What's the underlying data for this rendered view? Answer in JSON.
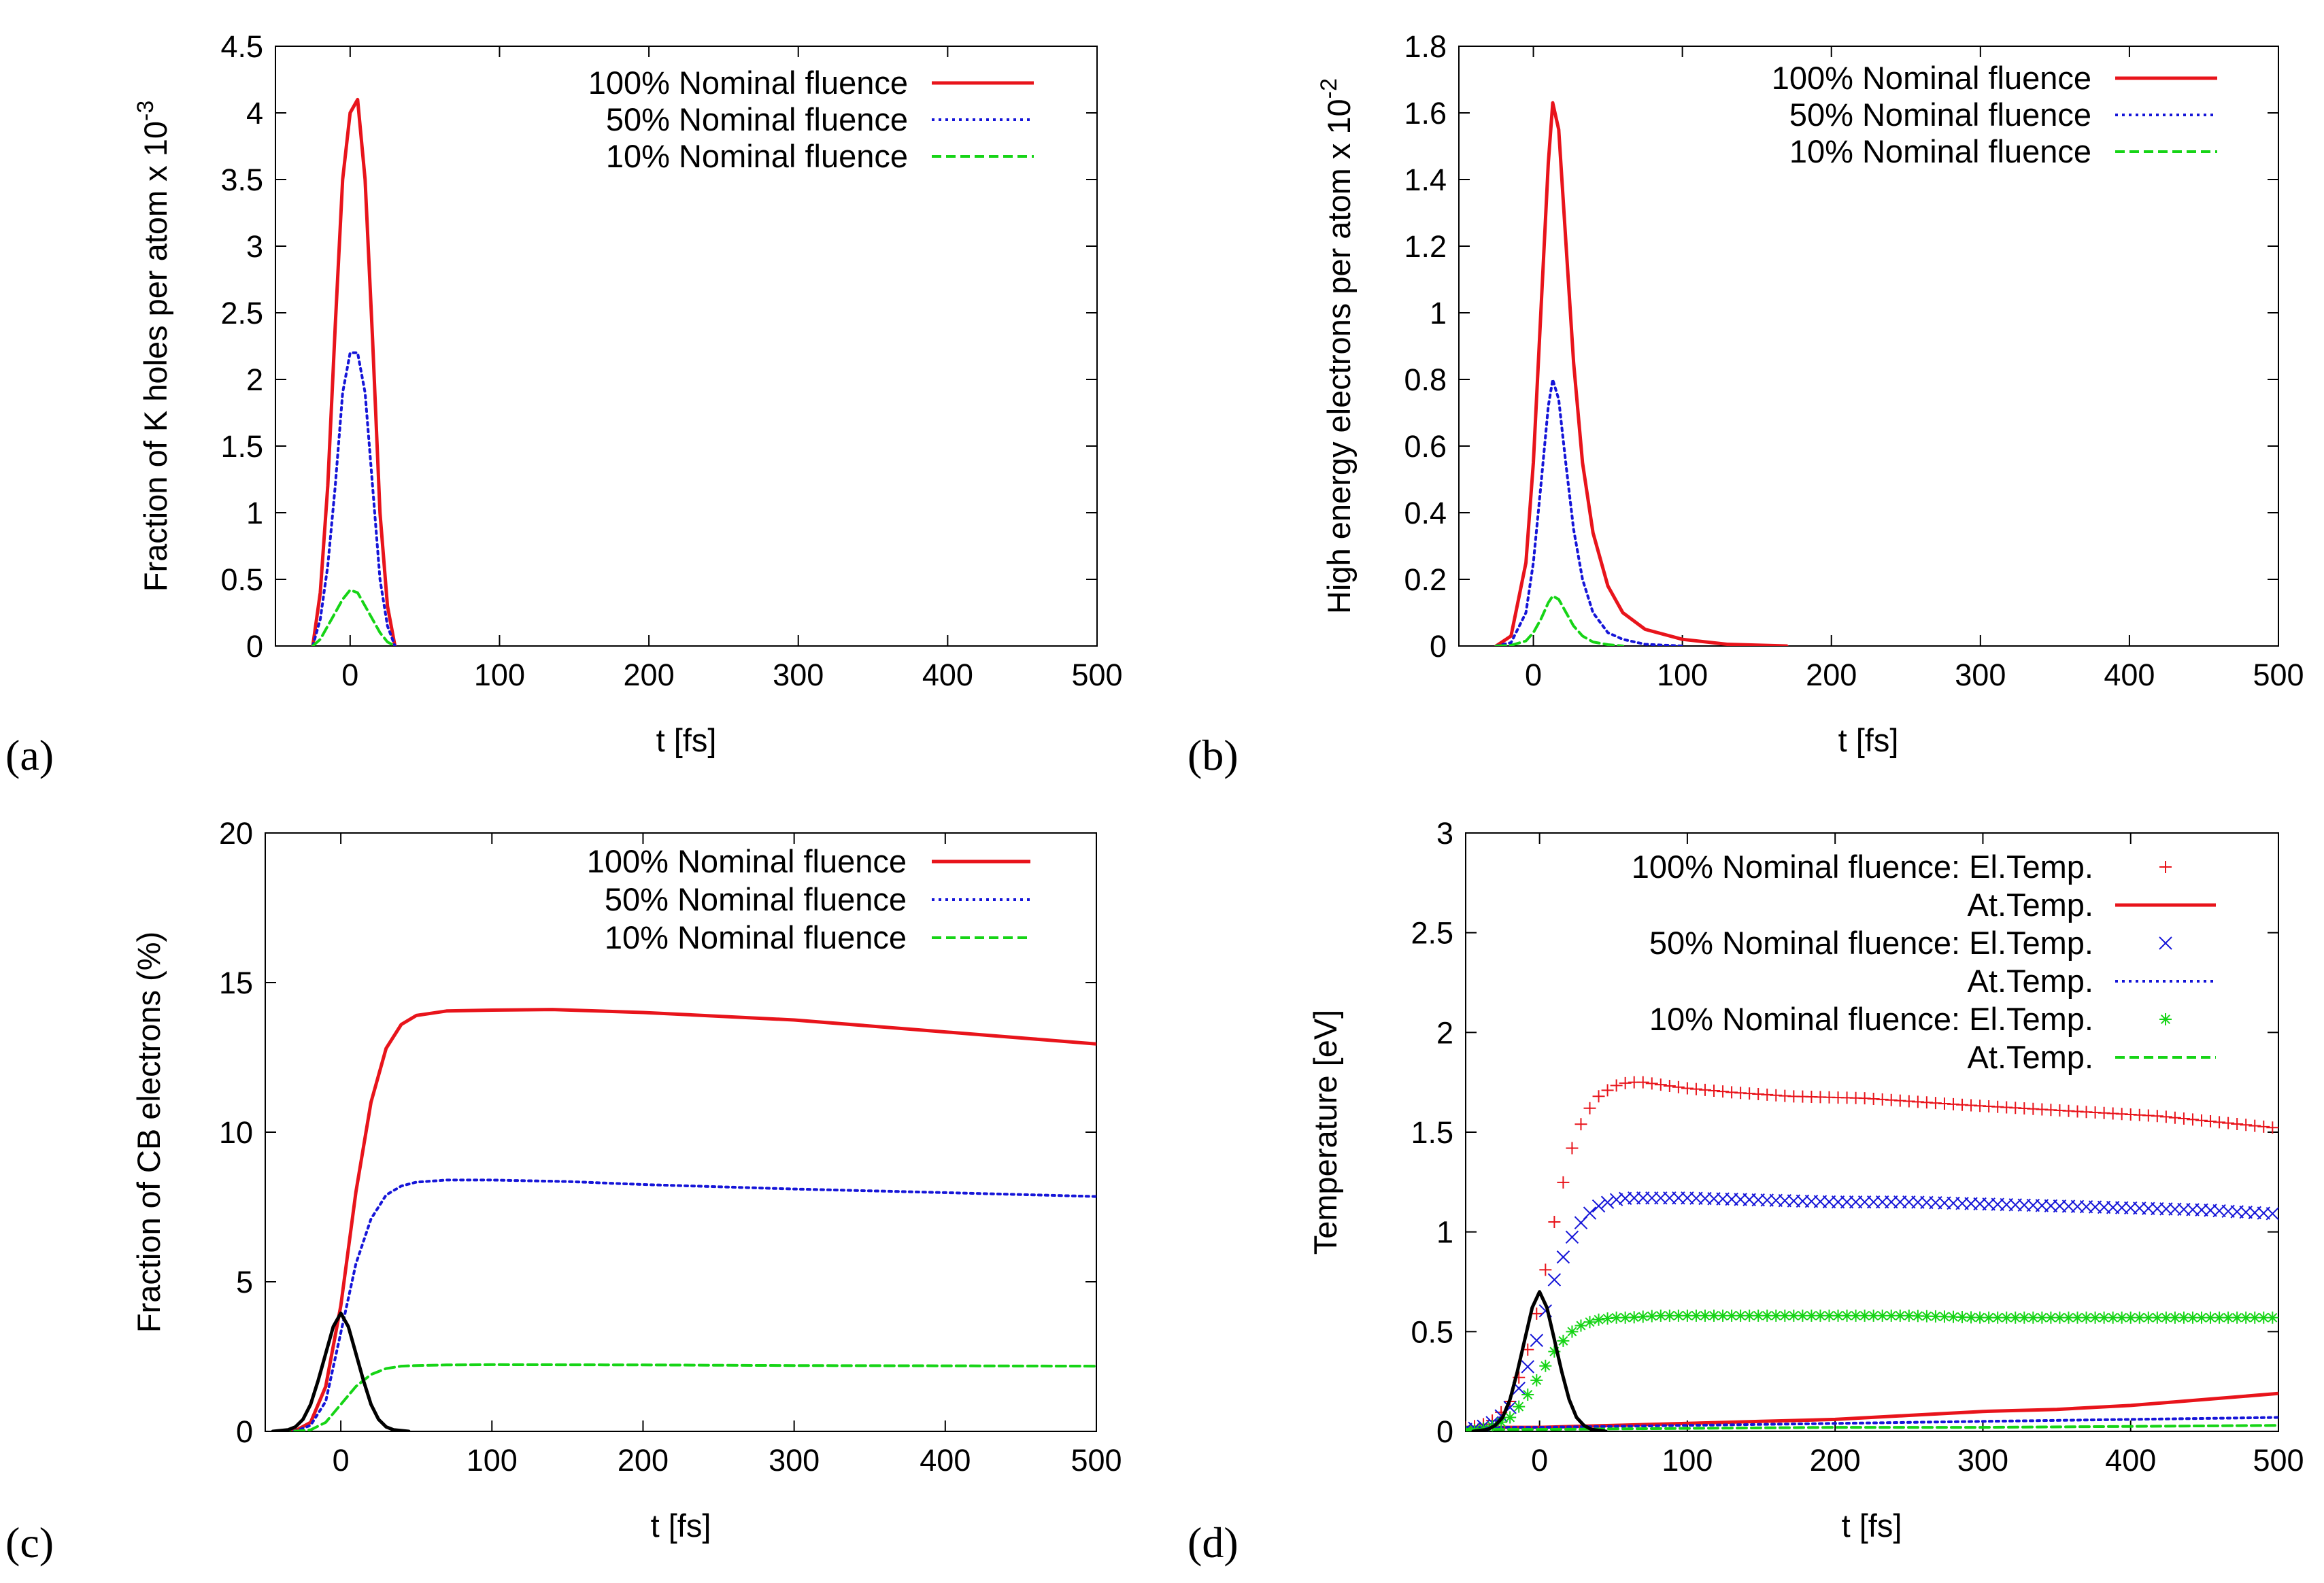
{
  "figure": {
    "panel_labels": [
      "(a)",
      "(b)",
      "(c)",
      "(d)"
    ]
  },
  "colors": {
    "red": "#e8141b",
    "blue": "#1515d8",
    "green": "#16d416",
    "black": "#000000"
  },
  "chart_data": [
    {
      "id": "a",
      "type": "line",
      "title": "",
      "xlabel": "t [fs]",
      "ylabel": "Fraction of K holes per atom x 10",
      "ylabel_sup": "-3",
      "xlim": [
        -50,
        500
      ],
      "ylim": [
        0,
        4.5
      ],
      "xticks": [
        0,
        100,
        200,
        300,
        400,
        500
      ],
      "xtick_labels": [
        "0",
        "100",
        "200",
        "300",
        "400",
        "500"
      ],
      "yticks": [
        0,
        0.5,
        1,
        1.5,
        2,
        2.5,
        3,
        3.5,
        4,
        4.5
      ],
      "ytick_labels": [
        "0",
        "0.5",
        "1",
        "1.5",
        "2",
        "2.5",
        "3",
        "3.5",
        "4",
        "4.5"
      ],
      "legend": [
        {
          "label": "100% Nominal fluence",
          "series": 0
        },
        {
          "label": "50% Nominal fluence",
          "series": 1
        },
        {
          "label": "10% Nominal fluence",
          "series": 2
        }
      ],
      "series": [
        {
          "name": "100% Nominal fluence",
          "color": "red",
          "style": "solid",
          "x": [
            -25,
            -20,
            -15,
            -10,
            -5,
            0,
            5,
            10,
            15,
            20,
            25,
            30
          ],
          "y": [
            0,
            0.4,
            1.2,
            2.4,
            3.5,
            4.0,
            4.1,
            3.5,
            2.3,
            1.0,
            0.3,
            0
          ]
        },
        {
          "name": "50% Nominal fluence",
          "color": "blue",
          "style": "dotted",
          "x": [
            -25,
            -20,
            -15,
            -10,
            -5,
            0,
            5,
            10,
            15,
            20,
            25,
            30
          ],
          "y": [
            0,
            0.2,
            0.6,
            1.2,
            1.9,
            2.2,
            2.2,
            1.9,
            1.2,
            0.5,
            0.15,
            0
          ]
        },
        {
          "name": "10% Nominal fluence",
          "color": "green",
          "style": "dashed",
          "x": [
            -25,
            -20,
            -15,
            -10,
            -5,
            0,
            5,
            10,
            15,
            20,
            25,
            30
          ],
          "y": [
            0,
            0.05,
            0.15,
            0.25,
            0.35,
            0.42,
            0.4,
            0.3,
            0.2,
            0.1,
            0.03,
            0
          ]
        }
      ]
    },
    {
      "id": "b",
      "type": "line",
      "title": "",
      "xlabel": "t [fs]",
      "ylabel": "High energy electrons per atom x 10",
      "ylabel_sup": "-2",
      "xlim": [
        -50,
        500
      ],
      "ylim": [
        0,
        1.8
      ],
      "xticks": [
        0,
        100,
        200,
        300,
        400,
        500
      ],
      "xtick_labels": [
        "0",
        "100",
        "200",
        "300",
        "400",
        "500"
      ],
      "yticks": [
        0,
        0.2,
        0.4,
        0.6,
        0.8,
        1,
        1.2,
        1.4,
        1.6,
        1.8
      ],
      "ytick_labels": [
        "0",
        "0.2",
        "0.4",
        "0.6",
        "0.8",
        "1",
        "1.2",
        "1.4",
        "1.6",
        "1.8"
      ],
      "legend": [
        {
          "label": "100% Nominal fluence",
          "series": 0
        },
        {
          "label": "50% Nominal fluence",
          "series": 1
        },
        {
          "label": "10% Nominal fluence",
          "series": 2
        }
      ],
      "series": [
        {
          "name": "100% Nominal fluence",
          "color": "red",
          "style": "solid",
          "x": [
            -25,
            -15,
            -5,
            0,
            5,
            10,
            13,
            17,
            22,
            27,
            33,
            40,
            50,
            60,
            75,
            100,
            130,
            170
          ],
          "y": [
            0,
            0.03,
            0.25,
            0.55,
            1.0,
            1.45,
            1.63,
            1.55,
            1.2,
            0.85,
            0.55,
            0.34,
            0.18,
            0.1,
            0.05,
            0.02,
            0.005,
            0
          ]
        },
        {
          "name": "50% Nominal fluence",
          "color": "blue",
          "style": "dotted",
          "x": [
            -25,
            -15,
            -5,
            0,
            5,
            10,
            13,
            17,
            22,
            27,
            33,
            40,
            50,
            60,
            75,
            100
          ],
          "y": [
            0,
            0.01,
            0.1,
            0.25,
            0.48,
            0.72,
            0.8,
            0.74,
            0.54,
            0.35,
            0.2,
            0.1,
            0.04,
            0.02,
            0.005,
            0
          ]
        },
        {
          "name": "10% Nominal fluence",
          "color": "green",
          "style": "dashed",
          "x": [
            -25,
            -15,
            -5,
            0,
            5,
            10,
            13,
            17,
            22,
            27,
            33,
            40,
            50,
            60
          ],
          "y": [
            0,
            0.002,
            0.015,
            0.04,
            0.08,
            0.13,
            0.15,
            0.14,
            0.1,
            0.06,
            0.03,
            0.012,
            0.004,
            0
          ]
        }
      ]
    },
    {
      "id": "c",
      "type": "line",
      "title": "",
      "xlabel": "t [fs]",
      "ylabel": "Fraction of CB electrons (%)",
      "ylabel_sup": "",
      "xlim": [
        -50,
        500
      ],
      "ylim": [
        0,
        20
      ],
      "xticks": [
        0,
        100,
        200,
        300,
        400,
        500
      ],
      "xtick_labels": [
        "0",
        "100",
        "200",
        "300",
        "400",
        "500"
      ],
      "yticks": [
        0,
        5,
        10,
        15,
        20
      ],
      "ytick_labels": [
        "0",
        "5",
        "10",
        "15",
        "20"
      ],
      "legend": [
        {
          "label": "100% Nominal fluence",
          "series": 0
        },
        {
          "label": "50% Nominal fluence",
          "series": 1
        },
        {
          "label": "10% Nominal fluence",
          "series": 2
        }
      ],
      "series": [
        {
          "name": "100% Nominal fluence",
          "color": "red",
          "style": "solid",
          "x": [
            -40,
            -30,
            -20,
            -10,
            0,
            10,
            20,
            30,
            40,
            50,
            70,
            100,
            140,
            200,
            300,
            400,
            500
          ],
          "y": [
            0,
            0.02,
            0.3,
            1.5,
            4.2,
            8.0,
            11.0,
            12.8,
            13.6,
            13.9,
            14.05,
            14.08,
            14.1,
            14.0,
            13.75,
            13.35,
            12.95
          ]
        },
        {
          "name": "50% Nominal fluence",
          "color": "blue",
          "style": "dotted",
          "x": [
            -40,
            -30,
            -20,
            -10,
            0,
            10,
            20,
            30,
            40,
            50,
            70,
            100,
            150,
            200,
            300,
            400,
            500
          ],
          "y": [
            0,
            0.01,
            0.2,
            1.0,
            3.3,
            5.6,
            7.1,
            7.9,
            8.2,
            8.33,
            8.4,
            8.4,
            8.35,
            8.25,
            8.1,
            7.98,
            7.85
          ]
        },
        {
          "name": "10% Nominal fluence",
          "color": "green",
          "style": "dashed",
          "x": [
            -40,
            -30,
            -20,
            -10,
            0,
            10,
            20,
            30,
            40,
            50,
            70,
            100,
            200,
            300,
            400,
            500
          ],
          "y": [
            0,
            0.005,
            0.05,
            0.3,
            0.9,
            1.5,
            1.9,
            2.1,
            2.18,
            2.2,
            2.22,
            2.23,
            2.22,
            2.2,
            2.19,
            2.18
          ]
        },
        {
          "name": "pulse",
          "color": "black",
          "style": "solid",
          "x": [
            -45,
            -35,
            -30,
            -25,
            -20,
            -15,
            -10,
            -5,
            0,
            5,
            10,
            15,
            20,
            25,
            30,
            35,
            45
          ],
          "y": [
            0,
            0.05,
            0.15,
            0.4,
            0.9,
            1.7,
            2.6,
            3.5,
            3.95,
            3.5,
            2.6,
            1.7,
            0.9,
            0.4,
            0.15,
            0.05,
            0
          ]
        }
      ]
    },
    {
      "id": "d",
      "type": "line",
      "title": "",
      "xlabel": "t [fs]",
      "ylabel": "Temperature [eV]",
      "ylabel_sup": "",
      "xlim": [
        -50,
        500
      ],
      "ylim": [
        0,
        3
      ],
      "xticks": [
        0,
        100,
        200,
        300,
        400,
        500
      ],
      "xtick_labels": [
        "0",
        "100",
        "200",
        "300",
        "400",
        "500"
      ],
      "yticks": [
        0,
        0.5,
        1,
        1.5,
        2,
        2.5,
        3
      ],
      "ytick_labels": [
        "0",
        "0.5",
        "1",
        "1.5",
        "2",
        "2.5",
        "3"
      ],
      "legend": [
        {
          "label": "100% Nominal fluence: El.Temp.",
          "series": 0
        },
        {
          "label": "At.Temp.",
          "series": 1
        },
        {
          "label": "50% Nominal fluence: El.Temp.",
          "series": 2
        },
        {
          "label": "At.Temp.",
          "series": 3
        },
        {
          "label": "10% Nominal fluence: El.Temp.",
          "series": 4
        },
        {
          "label": "At.Temp.",
          "series": 5
        }
      ],
      "series": [
        {
          "name": "100% Nominal fluence: El.Temp.",
          "color": "red",
          "style": "plus",
          "x": [
            -50,
            -40,
            -30,
            -20,
            -10,
            0,
            10,
            20,
            30,
            40,
            50,
            60,
            70,
            80,
            100,
            130,
            170,
            220,
            280,
            350,
            420,
            500
          ],
          "y": [
            0.02,
            0.03,
            0.06,
            0.15,
            0.35,
            0.65,
            1.05,
            1.38,
            1.58,
            1.68,
            1.73,
            1.75,
            1.75,
            1.74,
            1.72,
            1.7,
            1.68,
            1.67,
            1.64,
            1.61,
            1.58,
            1.52
          ]
        },
        {
          "name": "100% Nominal fluence: At.Temp.",
          "color": "red",
          "style": "solid",
          "x": [
            -50,
            0,
            50,
            100,
            150,
            200,
            250,
            300,
            350,
            400,
            450,
            500
          ],
          "y": [
            0.02,
            0.02,
            0.03,
            0.04,
            0.05,
            0.06,
            0.08,
            0.1,
            0.11,
            0.13,
            0.16,
            0.19
          ]
        },
        {
          "name": "50% Nominal fluence: El.Temp.",
          "color": "blue",
          "style": "cross",
          "x": [
            -50,
            -40,
            -30,
            -20,
            -10,
            0,
            10,
            20,
            30,
            40,
            50,
            60,
            70,
            80,
            100,
            150,
            200,
            250,
            300,
            350,
            400,
            450,
            500
          ],
          "y": [
            0.01,
            0.02,
            0.05,
            0.12,
            0.28,
            0.5,
            0.76,
            0.95,
            1.07,
            1.13,
            1.16,
            1.17,
            1.17,
            1.17,
            1.17,
            1.16,
            1.15,
            1.15,
            1.14,
            1.13,
            1.12,
            1.11,
            1.09
          ]
        },
        {
          "name": "50% Nominal fluence: At.Temp.",
          "color": "blue",
          "style": "dotted",
          "x": [
            -50,
            0,
            100,
            200,
            300,
            400,
            500
          ],
          "y": [
            0.02,
            0.02,
            0.03,
            0.04,
            0.05,
            0.06,
            0.07
          ]
        },
        {
          "name": "10% Nominal fluence: El.Temp.",
          "color": "green",
          "style": "star",
          "x": [
            -50,
            -40,
            -30,
            -20,
            -10,
            0,
            10,
            20,
            30,
            40,
            50,
            60,
            80,
            100,
            150,
            200,
            250,
            300,
            350,
            400,
            450,
            500
          ],
          "y": [
            0.0,
            0.01,
            0.03,
            0.07,
            0.16,
            0.28,
            0.4,
            0.49,
            0.54,
            0.56,
            0.57,
            0.57,
            0.58,
            0.58,
            0.58,
            0.58,
            0.58,
            0.57,
            0.57,
            0.57,
            0.57,
            0.57
          ]
        },
        {
          "name": "10% Nominal fluence: At.Temp.",
          "color": "green",
          "style": "dashed",
          "x": [
            -50,
            0,
            100,
            200,
            300,
            400,
            500
          ],
          "y": [
            0.01,
            0.01,
            0.015,
            0.02,
            0.02,
            0.025,
            0.03
          ]
        },
        {
          "name": "pulse",
          "color": "black",
          "style": "solid",
          "x": [
            -45,
            -35,
            -30,
            -25,
            -20,
            -15,
            -10,
            -5,
            0,
            5,
            10,
            15,
            20,
            25,
            30,
            35,
            45
          ],
          "y": [
            0,
            0.01,
            0.03,
            0.07,
            0.16,
            0.3,
            0.46,
            0.62,
            0.7,
            0.62,
            0.46,
            0.3,
            0.16,
            0.07,
            0.03,
            0.01,
            0
          ]
        }
      ]
    }
  ]
}
